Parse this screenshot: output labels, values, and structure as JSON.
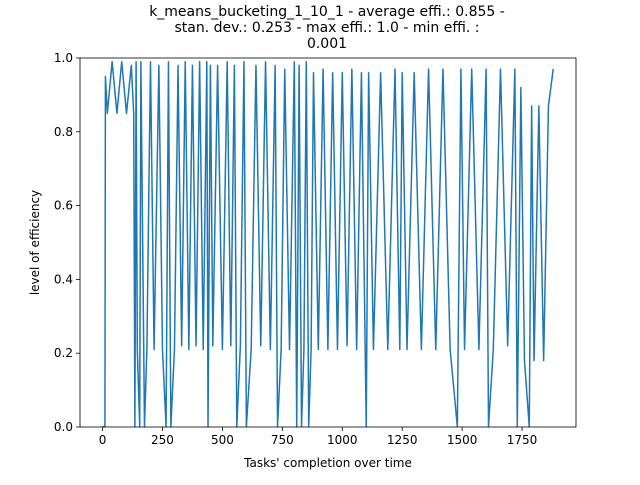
{
  "chart_data": {
    "type": "line",
    "title_lines": [
      "k_means_bucketing_1_10_1 - average effi.: 0.855 -",
      "stan. dev.: 0.253 - max effi.: 1.0 - min effi. :",
      "0.001"
    ],
    "xlabel": "Tasks' completion over time",
    "ylabel": "level of efficiency",
    "xlim": [
      -94,
      1975
    ],
    "ylim": [
      0.0,
      1.0
    ],
    "x_ticks": [
      0,
      250,
      500,
      750,
      1000,
      1250,
      1500,
      1750
    ],
    "y_ticks": [
      0.0,
      0.2,
      0.4,
      0.6,
      0.8,
      1.0
    ],
    "x_tick_labels": [
      "0",
      "250",
      "500",
      "750",
      "1000",
      "1250",
      "1500",
      "1750"
    ],
    "y_tick_labels": [
      "0.0",
      "0.2",
      "0.4",
      "0.6",
      "0.8",
      "1.0"
    ],
    "grid": false,
    "legend": "none",
    "series": [
      {
        "color": "#1f77b4",
        "x": [
          0,
          10,
          12,
          20,
          40,
          60,
          80,
          100,
          120,
          130,
          135,
          140,
          145,
          155,
          160,
          175,
          185,
          200,
          215,
          235,
          250,
          265,
          275,
          285,
          300,
          315,
          330,
          345,
          360,
          375,
          390,
          405,
          420,
          435,
          440,
          450,
          460,
          480,
          500,
          520,
          535,
          550,
          560,
          575,
          590,
          600,
          620,
          640,
          660,
          680,
          700,
          720,
          730,
          745,
          760,
          780,
          800,
          810,
          820,
          830,
          840,
          850,
          860,
          870,
          880,
          900,
          920,
          940,
          960,
          980,
          1000,
          1020,
          1040,
          1060,
          1080,
          1100,
          1110,
          1130,
          1160,
          1190,
          1220,
          1240,
          1250,
          1270,
          1300,
          1330,
          1360,
          1390,
          1420,
          1450,
          1480,
          1495,
          1510,
          1540,
          1570,
          1600,
          1610,
          1630,
          1660,
          1690,
          1720,
          1730,
          1745,
          1760,
          1780,
          1790,
          1800,
          1820,
          1840,
          1860,
          1880
        ],
        "y": [
          0.001,
          0.001,
          0.95,
          0.85,
          0.99,
          0.85,
          0.99,
          0.85,
          0.98,
          0.85,
          0.001,
          0.99,
          0.21,
          0.001,
          0.99,
          0.001,
          0.21,
          0.99,
          0.21,
          0.98,
          0.21,
          0.001,
          0.99,
          0.001,
          0.21,
          0.98,
          0.22,
          0.99,
          0.21,
          0.98,
          0.22,
          0.99,
          0.21,
          0.99,
          0.001,
          0.98,
          0.22,
          0.98,
          0.21,
          0.99,
          0.22,
          0.98,
          0.001,
          0.22,
          0.99,
          0.001,
          0.21,
          0.98,
          0.22,
          0.99,
          0.21,
          0.98,
          0.001,
          0.21,
          0.97,
          0.21,
          0.99,
          0.001,
          0.98,
          0.001,
          0.21,
          0.99,
          0.001,
          0.21,
          0.96,
          0.21,
          0.97,
          0.21,
          0.96,
          0.21,
          0.96,
          0.22,
          0.97,
          0.21,
          0.96,
          0.001,
          0.96,
          0.21,
          0.96,
          0.21,
          0.97,
          0.21,
          0.96,
          0.21,
          0.96,
          0.21,
          0.97,
          0.21,
          0.97,
          0.21,
          0.001,
          0.97,
          0.21,
          0.97,
          0.21,
          0.97,
          0.001,
          0.21,
          0.97,
          0.22,
          0.97,
          0.001,
          0.92,
          0.18,
          0.001,
          0.87,
          0.18,
          0.87,
          0.18,
          0.87,
          0.97
        ]
      }
    ]
  }
}
